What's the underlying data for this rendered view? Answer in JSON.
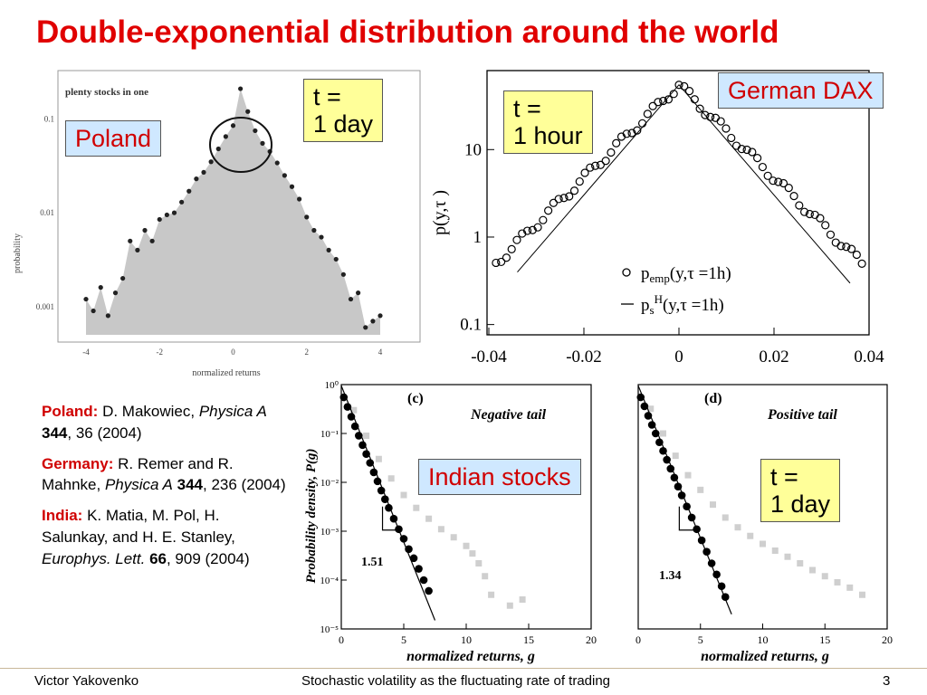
{
  "slide": {
    "title": "Double-exponential distribution around the world",
    "footer": {
      "author": "Victor Yakovenko",
      "subtitle": "Stochastic volatility as the fluctuating rate of trading",
      "page": "3"
    }
  },
  "labels": {
    "poland": "Poland",
    "poland_tau_1": "t =",
    "poland_tau_2": "1 day",
    "dax": "German DAX",
    "dax_tau_1": "t =",
    "dax_tau_2": "1 hour",
    "india": "Indian stocks",
    "india_tau_1": "t =",
    "india_tau_2": "1 day"
  },
  "references": {
    "poland": {
      "country": "Poland:",
      "authors": " D. Makowiec, ",
      "journal": "Physica A",
      "volume": " 344",
      "rest": ", 36 (2004)"
    },
    "germany": {
      "country": "Germany:",
      "authors": " R. Remer and R. Mahnke, ",
      "journal": "Physica A",
      "volume": " 344",
      "rest": ", 236 (2004)"
    },
    "india": {
      "country": "India:",
      "authors": " K. Matia, M. Pol, H. Salunkay, and H. E. Stanley, ",
      "journal": "Europhys. Lett.",
      "volume": " 66",
      "rest": ", 909 (2004)"
    }
  },
  "chart_data": [
    {
      "type": "area",
      "title": "plenty stocks in one",
      "xlabel": "normalized returns",
      "ylabel": "probability",
      "yscale": "log",
      "xlim": [
        -4,
        4
      ],
      "ylim": [
        0.0005,
        0.3
      ],
      "xticks": [
        "-4",
        "-2",
        "0",
        "2",
        "4"
      ],
      "yticks": [
        "0.1",
        "0.01",
        "0.001"
      ],
      "x": [
        -4.0,
        -3.8,
        -3.6,
        -3.4,
        -3.2,
        -3.0,
        -2.8,
        -2.6,
        -2.4,
        -2.2,
        -2.0,
        -1.8,
        -1.6,
        -1.4,
        -1.2,
        -1.0,
        -0.8,
        -0.6,
        -0.4,
        -0.2,
        0.0,
        0.2,
        0.4,
        0.6,
        0.8,
        1.0,
        1.2,
        1.4,
        1.6,
        1.8,
        2.0,
        2.2,
        2.4,
        2.6,
        2.8,
        3.0,
        3.2,
        3.4,
        3.6,
        3.8,
        4.0
      ],
      "values": [
        0.0012,
        0.0009,
        0.0016,
        0.0008,
        0.0014,
        0.002,
        0.005,
        0.004,
        0.0065,
        0.005,
        0.0085,
        0.0095,
        0.01,
        0.013,
        0.017,
        0.023,
        0.027,
        0.035,
        0.048,
        0.065,
        0.085,
        0.21,
        0.12,
        0.075,
        0.055,
        0.045,
        0.034,
        0.025,
        0.019,
        0.014,
        0.009,
        0.0065,
        0.0055,
        0.004,
        0.0032,
        0.0022,
        0.0012,
        0.0014,
        0.0006,
        0.0007,
        0.0008
      ]
    },
    {
      "type": "scatter",
      "xlabel": "",
      "ylabel": "p(y,τ )",
      "yscale": "log",
      "xlim": [
        -0.04,
        0.04
      ],
      "ylim": [
        0.08,
        80
      ],
      "xticks": [
        "-0.04",
        "-0.02",
        "0",
        "0.02",
        "0.04"
      ],
      "yticks": [
        "10",
        "1",
        "0.1"
      ],
      "legend": [
        "p_emp(y,τ =1h)",
        "p_s^H(y,τ =1h)"
      ],
      "series": [
        {
          "name": "p_emp(y,τ =1h)",
          "kind": "points",
          "decay_per_unit_y": 122,
          "peak": 55,
          "x_start": -0.0385,
          "x_end": 0.0385,
          "step": 0.0011
        },
        {
          "name": "p_s^H(y,τ =1h)",
          "kind": "line",
          "decay_per_unit_y": 145,
          "peak": 55,
          "x_start": -0.034,
          "x_end": 0.036
        }
      ]
    },
    {
      "type": "scatter",
      "title": "(c)",
      "subtitle": "Negative tail",
      "xlabel": "normalized returns, g",
      "ylabel": "Probability density, P(g)",
      "yscale": "log",
      "xlim": [
        0,
        20
      ],
      "ylim": [
        1e-05,
        1
      ],
      "xticks": [
        "0",
        "5",
        "10",
        "15",
        "20"
      ],
      "yticks": [
        "10⁰",
        "10⁻¹",
        "10⁻²",
        "10⁻³",
        "10⁻⁴",
        "10⁻⁵"
      ],
      "annotation": "1.51",
      "series": [
        {
          "name": "",
          "kind": "black-points",
          "x": [
            0.2,
            0.5,
            0.8,
            1.1,
            1.4,
            1.7,
            2.0,
            2.3,
            2.6,
            2.9,
            3.2,
            3.5,
            3.8,
            4.2,
            4.6,
            5.0,
            5.4,
            5.8,
            6.2,
            6.6,
            7.0
          ],
          "values": [
            0.55,
            0.35,
            0.22,
            0.14,
            0.09,
            0.058,
            0.038,
            0.025,
            0.016,
            0.0105,
            0.0068,
            0.0045,
            0.003,
            0.0018,
            0.0011,
            0.0007,
            0.00043,
            0.00028,
            0.00017,
            0.0001,
            6e-05
          ]
        },
        {
          "name": "",
          "kind": "gray-points",
          "x": [
            1.0,
            2.0,
            3.0,
            4.0,
            5.0,
            6.0,
            7.0,
            8.0,
            9.0,
            10.0,
            10.5,
            11.0,
            11.5,
            12.0,
            13.5,
            14.5
          ],
          "values": [
            0.3,
            0.09,
            0.03,
            0.012,
            0.0055,
            0.003,
            0.0018,
            0.0011,
            0.00075,
            0.0005,
            0.00035,
            0.00022,
            0.00012,
            5e-05,
            3e-05,
            4e-05
          ]
        },
        {
          "name": "",
          "kind": "fit-line",
          "x": [
            0.0,
            7.5
          ],
          "values": [
            0.95,
            1.5e-05
          ]
        }
      ]
    },
    {
      "type": "scatter",
      "title": "(d)",
      "subtitle": "Positive tail",
      "xlabel": "normalized returns, g",
      "ylabel": "",
      "yscale": "log",
      "xlim": [
        0,
        20
      ],
      "ylim": [
        1e-05,
        1
      ],
      "xticks": [
        "0",
        "5",
        "10",
        "15",
        "20"
      ],
      "annotation": "1.34",
      "series": [
        {
          "name": "",
          "kind": "black-points",
          "x": [
            0.2,
            0.5,
            0.8,
            1.1,
            1.4,
            1.7,
            2.0,
            2.3,
            2.6,
            2.9,
            3.2,
            3.5,
            3.9,
            4.3,
            4.7,
            5.1,
            5.5,
            5.9,
            6.3,
            6.7,
            7.0
          ],
          "values": [
            0.55,
            0.36,
            0.23,
            0.15,
            0.1,
            0.066,
            0.044,
            0.029,
            0.019,
            0.0125,
            0.0082,
            0.0054,
            0.0032,
            0.0019,
            0.0011,
            0.00065,
            0.00038,
            0.00022,
            0.00013,
            7.5e-05,
            4.5e-05
          ]
        },
        {
          "name": "",
          "kind": "gray-points",
          "x": [
            1.0,
            2.0,
            3.0,
            4.0,
            5.0,
            6.0,
            7.0,
            8.0,
            9.0,
            10.0,
            11.0,
            12.0,
            13.0,
            14.0,
            15.0,
            16.0,
            17.0,
            18.0
          ],
          "values": [
            0.32,
            0.1,
            0.035,
            0.014,
            0.007,
            0.0035,
            0.0019,
            0.0012,
            0.0008,
            0.00055,
            0.0004,
            0.0003,
            0.00022,
            0.00016,
            0.00012,
            9e-05,
            7e-05,
            5e-05
          ]
        },
        {
          "name": "",
          "kind": "fit-line",
          "x": [
            0.0,
            7.5
          ],
          "values": [
            0.95,
            2e-05
          ]
        }
      ]
    }
  ]
}
